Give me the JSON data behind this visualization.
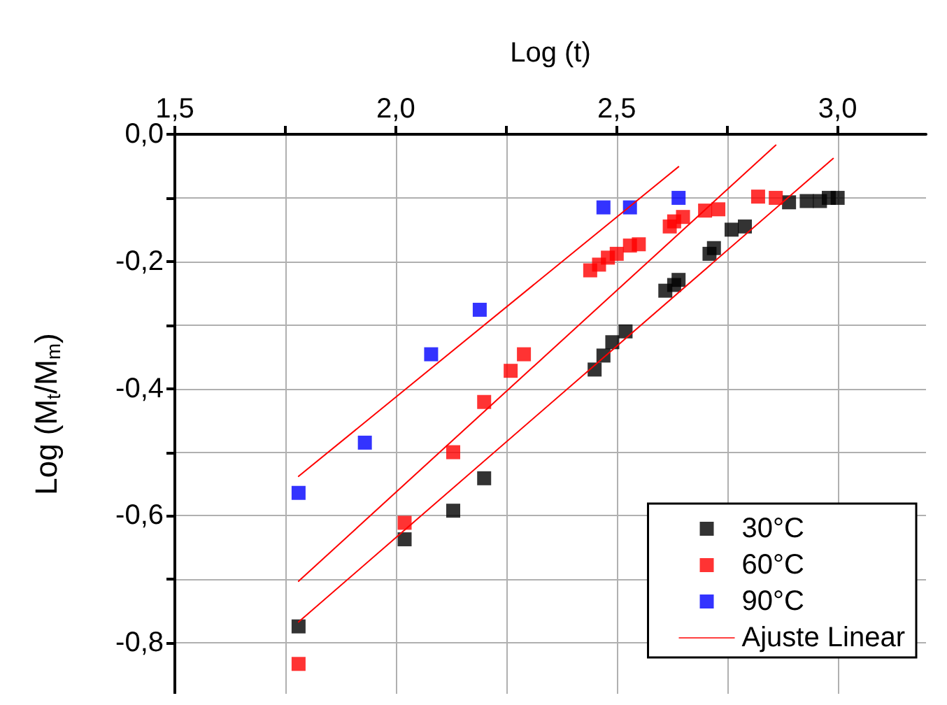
{
  "chart_data": {
    "type": "scatter",
    "xlabel": "Log (t)",
    "ylabel": "Log (M$_{t}$/M$_{m}$)",
    "xlim": [
      1.5,
      3.2
    ],
    "xticks": [
      {
        "value": 1.5,
        "label": "1,5"
      },
      {
        "value": 1.75,
        "label": null
      },
      {
        "value": 2.0,
        "label": "2,0"
      },
      {
        "value": 2.25,
        "label": null
      },
      {
        "value": 2.5,
        "label": "2,5"
      },
      {
        "value": 2.75,
        "label": null
      },
      {
        "value": 3.0,
        "label": "3,0"
      }
    ],
    "ylim": [
      -0.88,
      0
    ],
    "yticks": [
      {
        "value": 0,
        "label": "0,0"
      },
      {
        "value": -0.1,
        "label": null
      },
      {
        "value": -0.2,
        "label": "-0,2"
      },
      {
        "value": -0.3,
        "label": null
      },
      {
        "value": -0.4,
        "label": "-0,4"
      },
      {
        "value": -0.5,
        "label": null
      },
      {
        "value": -0.6,
        "label": "-0,6"
      },
      {
        "value": -0.7,
        "label": null
      },
      {
        "value": -0.8,
        "label": "-0,8"
      }
    ],
    "grid": true,
    "legend": "bottom right",
    "marker": "square",
    "series": [
      {
        "name": "30°C",
        "color": "#000000",
        "x": [
          1.78,
          2.02,
          2.13,
          2.2,
          2.45,
          2.47,
          2.49,
          2.51,
          2.52,
          2.61,
          2.63,
          2.64,
          2.71,
          2.72,
          2.76,
          2.79,
          2.89,
          2.93,
          2.96,
          2.98,
          3.0
        ],
        "values": [
          -0.774,
          -0.637,
          -0.592,
          -0.541,
          -0.37,
          -0.348,
          -0.327,
          null,
          -0.31,
          -0.246,
          -0.237,
          -0.229,
          -0.188,
          -0.179,
          -0.15,
          -0.145,
          -0.107,
          -0.105,
          -0.105,
          -0.1,
          -0.1
        ]
      },
      {
        "name": "60°C",
        "color": "#ff0000",
        "x": [
          1.78,
          2.02,
          2.13,
          2.2,
          2.26,
          2.29,
          2.44,
          2.46,
          2.48,
          2.5,
          2.53,
          2.55,
          2.62,
          2.63,
          2.65,
          2.7,
          2.73,
          2.82,
          2.86
        ],
        "values": [
          -0.833,
          -0.611,
          -0.5,
          -0.421,
          -0.372,
          -0.346,
          -0.214,
          -0.205,
          -0.194,
          -0.188,
          -0.175,
          -0.173,
          -0.145,
          -0.137,
          -0.13,
          -0.12,
          -0.118,
          -0.098,
          -0.1
        ]
      },
      {
        "name": "90°C",
        "color": "#0000ff",
        "x": [
          1.78,
          1.93,
          2.08,
          2.19,
          2.47,
          2.53,
          2.64
        ],
        "values": [
          -0.564,
          -0.485,
          -0.346,
          -0.276,
          -0.115,
          -0.115,
          -0.1
        ]
      },
      {
        "name": "Ajuste Linear",
        "type": "line",
        "marker": "none",
        "color": "#ff0000",
        "x": [
          1.78,
          2.99
        ],
        "values": [
          -0.767,
          -0.038
        ]
      },
      {
        "type": "line",
        "marker": "none",
        "color": "#ff0000",
        "x": [
          1.78,
          2.86
        ],
        "values": [
          -0.703,
          -0.017
        ]
      },
      {
        "type": "line",
        "marker": "none",
        "color": "#ff0000",
        "x": [
          1.78,
          2.64
        ],
        "values": [
          -0.538,
          -0.051
        ]
      }
    ]
  }
}
